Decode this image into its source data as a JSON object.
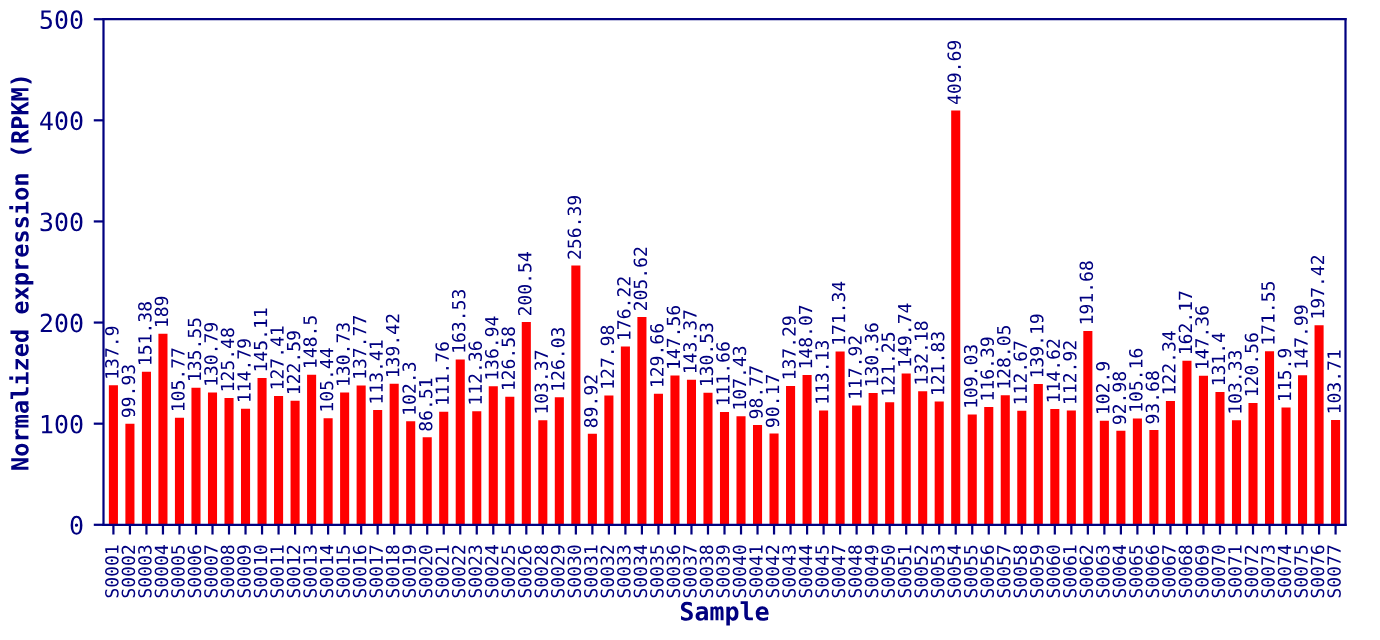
{
  "chart_data": {
    "type": "bar",
    "xlabel": "Sample",
    "ylabel": "Normalized expression (RPKM)",
    "categories": [
      "S0001",
      "S0002",
      "S0003",
      "S0004",
      "S0005",
      "S0006",
      "S0007",
      "S0008",
      "S0009",
      "S0010",
      "S0011",
      "S0012",
      "S0013",
      "S0014",
      "S0015",
      "S0016",
      "S0017",
      "S0018",
      "S0019",
      "S0020",
      "S0021",
      "S0022",
      "S0023",
      "S0024",
      "S0025",
      "S0026",
      "S0028",
      "S0029",
      "S0030",
      "S0031",
      "S0032",
      "S0033",
      "S0034",
      "S0035",
      "S0036",
      "S0037",
      "S0038",
      "S0039",
      "S0040",
      "S0041",
      "S0042",
      "S0043",
      "S0044",
      "S0045",
      "S0047",
      "S0048",
      "S0049",
      "S0050",
      "S0051",
      "S0052",
      "S0053",
      "S0054",
      "S0055",
      "S0056",
      "S0057",
      "S0058",
      "S0059",
      "S0060",
      "S0061",
      "S0062",
      "S0063",
      "S0064",
      "S0065",
      "S0066",
      "S0067",
      "S0068",
      "S0069",
      "S0070",
      "S0071",
      "S0072",
      "S0073",
      "S0074",
      "S0075",
      "S0076",
      "S0077"
    ],
    "values": [
      137.9,
      99.93,
      151.38,
      189,
      105.77,
      135.55,
      130.79,
      125.48,
      114.79,
      145.11,
      127.41,
      122.59,
      148.5,
      105.44,
      130.73,
      137.77,
      113.41,
      139.42,
      102.3,
      86.51,
      111.76,
      163.53,
      112.36,
      136.94,
      126.58,
      200.54,
      103.37,
      126.03,
      256.39,
      89.92,
      127.98,
      176.22,
      205.62,
      129.66,
      147.56,
      143.37,
      130.53,
      111.66,
      107.43,
      98.77,
      90.17,
      137.29,
      148.07,
      113.13,
      171.34,
      117.92,
      130.36,
      121.25,
      149.74,
      132.18,
      121.83,
      409.69,
      109.03,
      116.39,
      128.05,
      112.67,
      139.19,
      114.62,
      112.92,
      191.68,
      102.9,
      92.98,
      105.16,
      93.68,
      122.34,
      162.17,
      147.36,
      131.4,
      103.33,
      120.56,
      171.55,
      115.9,
      147.99,
      197.42,
      103.71
    ],
    "color": "#ff0000",
    "ylim": [
      0,
      500
    ],
    "yticks": [
      0,
      100,
      200,
      300,
      400,
      500
    ],
    "data_labels": true,
    "grid": false,
    "legend": false
  }
}
